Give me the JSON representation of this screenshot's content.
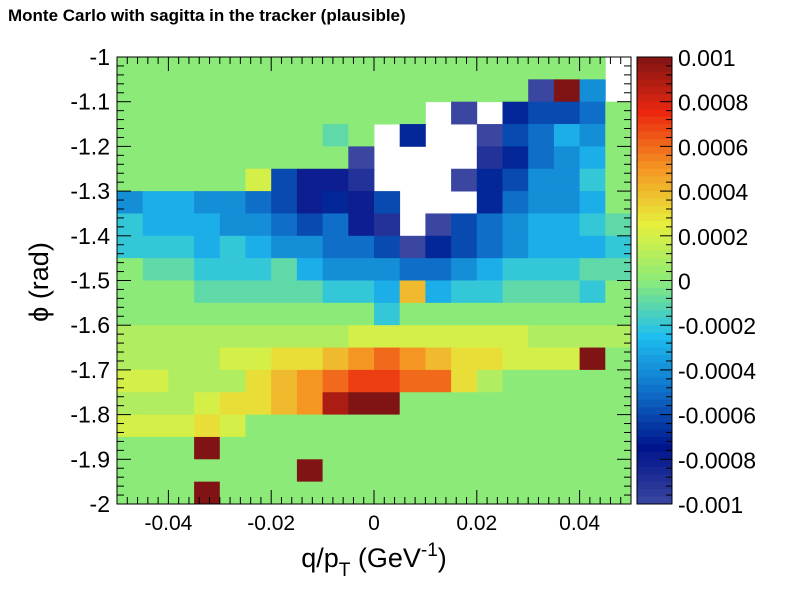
{
  "title": "Monte Carlo with sagitta in the tracker (plausible)",
  "chart_data": {
    "type": "heatmap",
    "title": "Monte Carlo with sagitta in the tracker (plausible)",
    "xlabel_parts": [
      "q/p",
      "T",
      " (GeV",
      "-1",
      ")"
    ],
    "ylabel_parts": [
      "ϕ",
      " (rad)"
    ],
    "xlim": [
      -0.05,
      0.05
    ],
    "ylim": [
      -2.0,
      -1.0
    ],
    "zlim": [
      -0.001,
      0.001
    ],
    "x_bins": 20,
    "y_bins": 20,
    "x_ticks": [
      -0.04,
      -0.02,
      0,
      0.02,
      0.04
    ],
    "x_tick_labels": [
      "-0.04",
      "-0.02",
      "0",
      "0.02",
      "0.04"
    ],
    "y_ticks": [
      -2,
      -1.9,
      -1.8,
      -1.7,
      -1.6,
      -1.5,
      -1.4,
      -1.3,
      -1.2,
      -1.1,
      -1
    ],
    "y_tick_labels": [
      "-2",
      "-1.9",
      "-1.8",
      "-1.7",
      "-1.6",
      "-1.5",
      "-1.4",
      "-1.3",
      "-1.2",
      "-1.1",
      "-1"
    ],
    "colorbar_ticks": [
      0.001,
      0.0008,
      0.0006,
      0.0004,
      0.0002,
      0,
      -0.0002,
      -0.0004,
      -0.0006,
      -0.0008,
      -0.001
    ],
    "colorbar_labels": [
      "0.001",
      "0.0008",
      "0.0006",
      "0.0004",
      "0.0002",
      "0",
      "-0.0002",
      "-0.0004",
      "-0.0006",
      "-0.0008",
      "-0.001"
    ],
    "values_note": "rows ordered from phi=-1.0 (top) to phi=-2.0 (bottom); columns from q/pT=-0.05 to 0.05; null = empty bin",
    "values": [
      [
        0,
        0,
        0,
        0,
        0,
        0,
        0,
        0,
        0,
        0,
        0,
        0,
        0,
        0,
        0,
        0,
        0,
        0,
        0,
        null
      ],
      [
        0,
        0,
        0,
        0,
        0,
        0,
        0,
        0,
        0,
        0,
        0,
        0,
        0,
        0,
        0,
        0,
        -0.001,
        0.001,
        -0.0004,
        null
      ],
      [
        0,
        0,
        0,
        0,
        0,
        0,
        0,
        0,
        0,
        0,
        0,
        0,
        null,
        -0.001,
        null,
        -0.0007,
        -0.0006,
        -0.0006,
        -0.0005,
        0
      ],
      [
        0,
        0,
        0,
        0,
        0,
        0,
        0,
        0,
        -0.0001,
        0,
        null,
        -0.0007,
        null,
        null,
        -0.001,
        -0.0006,
        -0.0005,
        -0.0003,
        -0.0004,
        0
      ],
      [
        0,
        0,
        0,
        0,
        0,
        0,
        0,
        0,
        0,
        -0.001,
        null,
        null,
        null,
        null,
        -0.0009,
        -0.0007,
        -0.0005,
        -0.0004,
        -0.0003,
        0
      ],
      [
        0,
        0,
        0,
        0,
        0,
        0.0002,
        -0.0006,
        -0.0008,
        -0.0008,
        -0.0009,
        null,
        null,
        null,
        -0.001,
        -0.0007,
        -0.0006,
        -0.0004,
        -0.0004,
        -0.0002,
        0
      ],
      [
        -0.0004,
        -0.0003,
        -0.0003,
        -0.0004,
        -0.0004,
        -0.0005,
        -0.0006,
        -0.0008,
        -0.0007,
        -0.0008,
        -0.0006,
        null,
        null,
        null,
        -0.0007,
        -0.0005,
        -0.0004,
        -0.0004,
        -0.0003,
        0
      ],
      [
        -0.0002,
        -0.0003,
        -0.0003,
        -0.0003,
        -0.0004,
        -0.0004,
        -0.0005,
        -0.0006,
        -0.0005,
        -0.0008,
        -0.0009,
        null,
        -0.001,
        -0.0006,
        -0.0005,
        -0.0004,
        -0.0003,
        -0.0003,
        -0.0002,
        -0.0001
      ],
      [
        -0.0002,
        -0.0002,
        -0.0002,
        -0.0003,
        -0.0002,
        -0.0003,
        -0.0004,
        -0.0004,
        -0.0005,
        -0.0005,
        -0.0006,
        -0.001,
        -0.0007,
        -0.0006,
        -0.0005,
        -0.0004,
        -0.0003,
        -0.0003,
        -0.0003,
        -0.0002
      ],
      [
        0,
        -0.0001,
        -0.0001,
        -0.0002,
        -0.0002,
        -0.0002,
        -0.0001,
        -0.0003,
        -0.0004,
        -0.0004,
        -0.0004,
        -0.0005,
        -0.0005,
        -0.0004,
        -0.0003,
        -0.0002,
        -0.0002,
        -0.0002,
        -0.0001,
        -0.0001
      ],
      [
        0,
        0,
        0,
        -0.0001,
        -0.0001,
        -0.0001,
        -0.0001,
        -0.0001,
        -0.0002,
        -0.0002,
        -0.0003,
        0.0004,
        -0.0003,
        -0.0002,
        -0.0002,
        -0.0001,
        -0.0001,
        -0.0001,
        -0.0002,
        0
      ],
      [
        0,
        0,
        0,
        0,
        0,
        0,
        0,
        0,
        0,
        0,
        -0.0002,
        0,
        0,
        0,
        0,
        0,
        0,
        0,
        0,
        0
      ],
      [
        0.0001,
        0.0001,
        0.0001,
        0.0001,
        0.0001,
        0.0001,
        0.0001,
        0.0001,
        0.0001,
        0.0002,
        0.0002,
        0.0002,
        0.0002,
        0.0002,
        0.0002,
        0.0002,
        0.0001,
        0.0001,
        0.0001,
        0.0001
      ],
      [
        0.0001,
        0.0001,
        0.0001,
        0.0001,
        0.0002,
        0.0002,
        0.0003,
        0.0003,
        0.0004,
        0.0005,
        0.0006,
        0.0005,
        0.0004,
        0.0003,
        0.0003,
        0.0002,
        0.0002,
        0.0002,
        0.001,
        0
      ],
      [
        0.0002,
        0.0002,
        0.0001,
        0.0001,
        0.0001,
        0.0003,
        0.0004,
        0.0005,
        0.0006,
        0.0007,
        0.0007,
        0.0006,
        0.0006,
        0.0003,
        0.0001,
        0,
        0,
        0,
        0,
        0
      ],
      [
        0.0001,
        0.0001,
        0.0001,
        0.0002,
        0.0003,
        0.0003,
        0.0004,
        0.0005,
        0.0009,
        0.001,
        0.001,
        0,
        0,
        0,
        0,
        0,
        0,
        0,
        0,
        0
      ],
      [
        0.0002,
        0.0002,
        0.0002,
        0.0003,
        0.0002,
        0,
        0,
        0,
        0,
        0,
        0,
        0,
        0,
        0,
        0,
        0,
        0,
        0,
        0,
        0
      ],
      [
        0,
        0,
        0,
        0.001,
        0,
        0,
        0,
        0,
        0,
        0,
        0,
        0,
        0,
        0,
        0,
        0,
        0,
        0,
        0,
        0
      ],
      [
        0,
        0,
        0,
        0,
        0,
        0,
        0,
        0.001,
        0,
        0,
        0,
        0,
        0,
        0,
        0,
        0,
        0,
        0,
        0,
        0
      ],
      [
        0,
        0,
        0,
        0.001,
        0,
        0,
        0,
        0,
        0,
        0,
        0,
        0,
        0,
        0,
        0,
        0,
        0,
        0,
        0,
        0
      ]
    ]
  }
}
